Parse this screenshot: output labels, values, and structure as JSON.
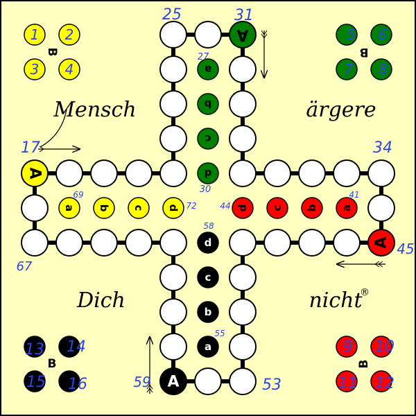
{
  "board": {
    "colors": {
      "background": "#ffffc0",
      "border": "#000000",
      "field": "#ffffff",
      "yellow": "#ffff00",
      "green": "#008000",
      "red": "#ff0000",
      "black": "#000000",
      "handwriting": "#2c46e0"
    },
    "words": [
      "Mensch",
      "ärgere",
      "Dich",
      "nicht",
      "®"
    ],
    "start_label": "A",
    "base_label": "B",
    "home_letters": [
      "a",
      "b",
      "c",
      "d"
    ]
  },
  "start_fields": {
    "yellow": {
      "label": "A",
      "number": "17"
    },
    "green": {
      "label": "A",
      "number": "31"
    },
    "red": {
      "label": "A",
      "number": "45"
    },
    "black": {
      "label": "A",
      "number": "59"
    }
  },
  "bases": {
    "yellow": {
      "label": "B",
      "numbers": [
        "1",
        "2",
        "3",
        "4"
      ]
    },
    "green": {
      "label": "B",
      "numbers": [
        "5",
        "6",
        "7",
        "8"
      ]
    },
    "black": {
      "label": "B",
      "numbers": [
        "13",
        "14",
        "15",
        "16"
      ]
    },
    "red": {
      "label": "B",
      "numbers": [
        "9",
        "10",
        "11",
        "12"
      ]
    }
  },
  "field_numbers": {
    "n25": "25",
    "n34": "34",
    "n67": "67",
    "n53": "53"
  },
  "home_numbers": {
    "green_a": "27",
    "green_d": "30",
    "yellow_a": "69",
    "yellow_d": "72",
    "red_a": "41",
    "red_d": "44",
    "black_a": "55",
    "black_d": "58"
  }
}
